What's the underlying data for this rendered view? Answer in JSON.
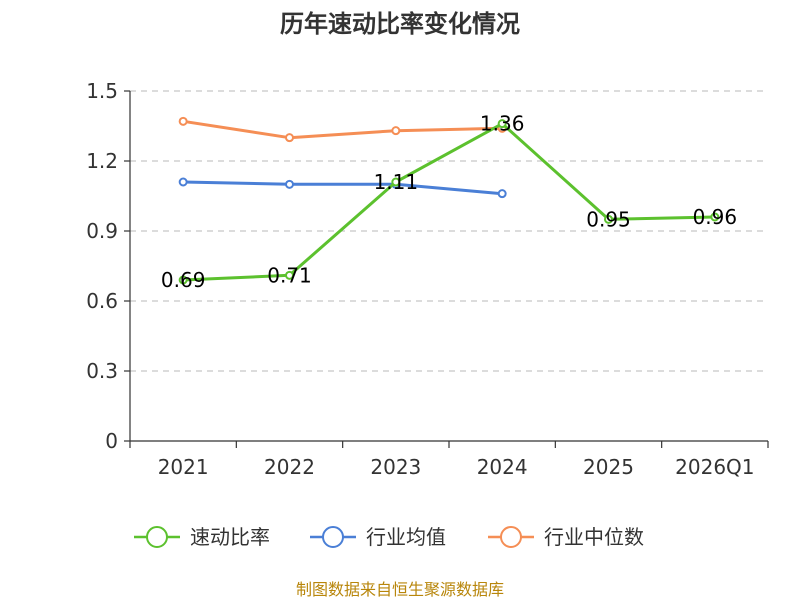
{
  "chart_data": {
    "type": "line",
    "title": "历年速动比率变化情况",
    "categories": [
      "2021",
      "2022",
      "2023",
      "2024",
      "2025",
      "2026Q1"
    ],
    "y_ticks": [
      "0",
      "0.3",
      "0.6",
      "0.9",
      "1.2",
      "1.5"
    ],
    "ylim": [
      0,
      1.5
    ],
    "grid": true,
    "legend_position": "bottom",
    "series": [
      {
        "name": "速动比率",
        "color": "#5cc12e",
        "values": [
          0.69,
          0.71,
          1.11,
          1.36,
          0.95,
          0.96
        ],
        "labels": [
          "0.69",
          "0.71",
          "1.11",
          "1.36",
          "0.95",
          "0.96"
        ]
      },
      {
        "name": "行业均值",
        "color": "#4a7fd6",
        "values": [
          1.11,
          1.1,
          1.1,
          1.06,
          null,
          null
        ]
      },
      {
        "name": "行业中位数",
        "color": "#f58e55",
        "values": [
          1.37,
          1.3,
          1.33,
          1.34,
          null,
          null
        ]
      }
    ],
    "source": "制图数据来自恒生聚源数据库"
  }
}
